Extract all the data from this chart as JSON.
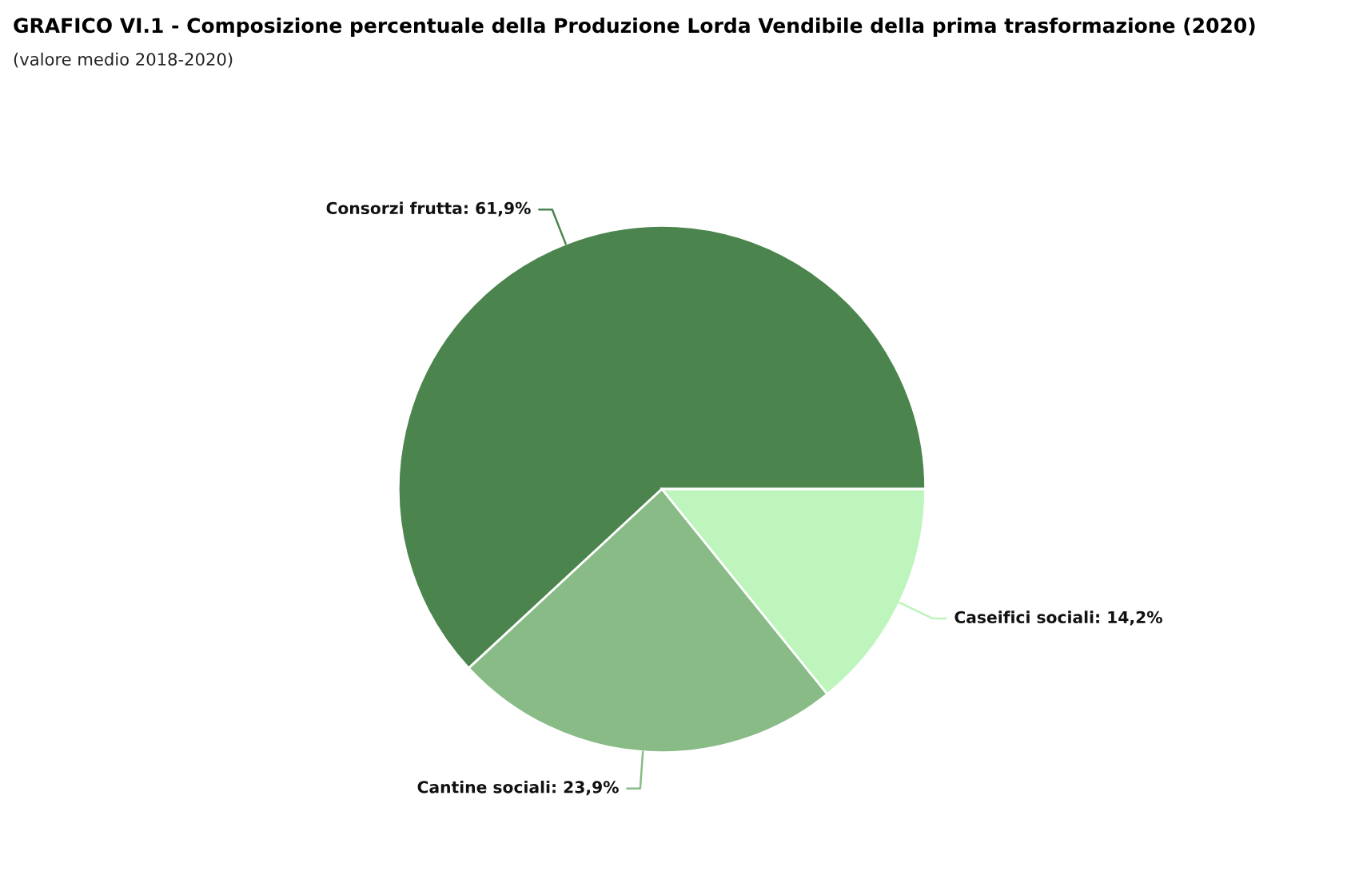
{
  "chart_data": {
    "type": "pie",
    "title": "GRAFICO VI.1 - Composizione percentuale della Produzione Lorda Vendibile della prima trasformazione (2020)",
    "subtitle": "(valore medio 2018-2020)",
    "categories": [
      "Consorzi frutta",
      "Cantine sociali",
      "Caseifici sociali"
    ],
    "values": [
      61.9,
      23.9,
      14.2
    ],
    "colors": [
      "#4b844d",
      "#88bb86",
      "#bdf5bc"
    ],
    "value_labels": [
      "61,9%",
      "23,9%",
      "14,2%"
    ]
  }
}
